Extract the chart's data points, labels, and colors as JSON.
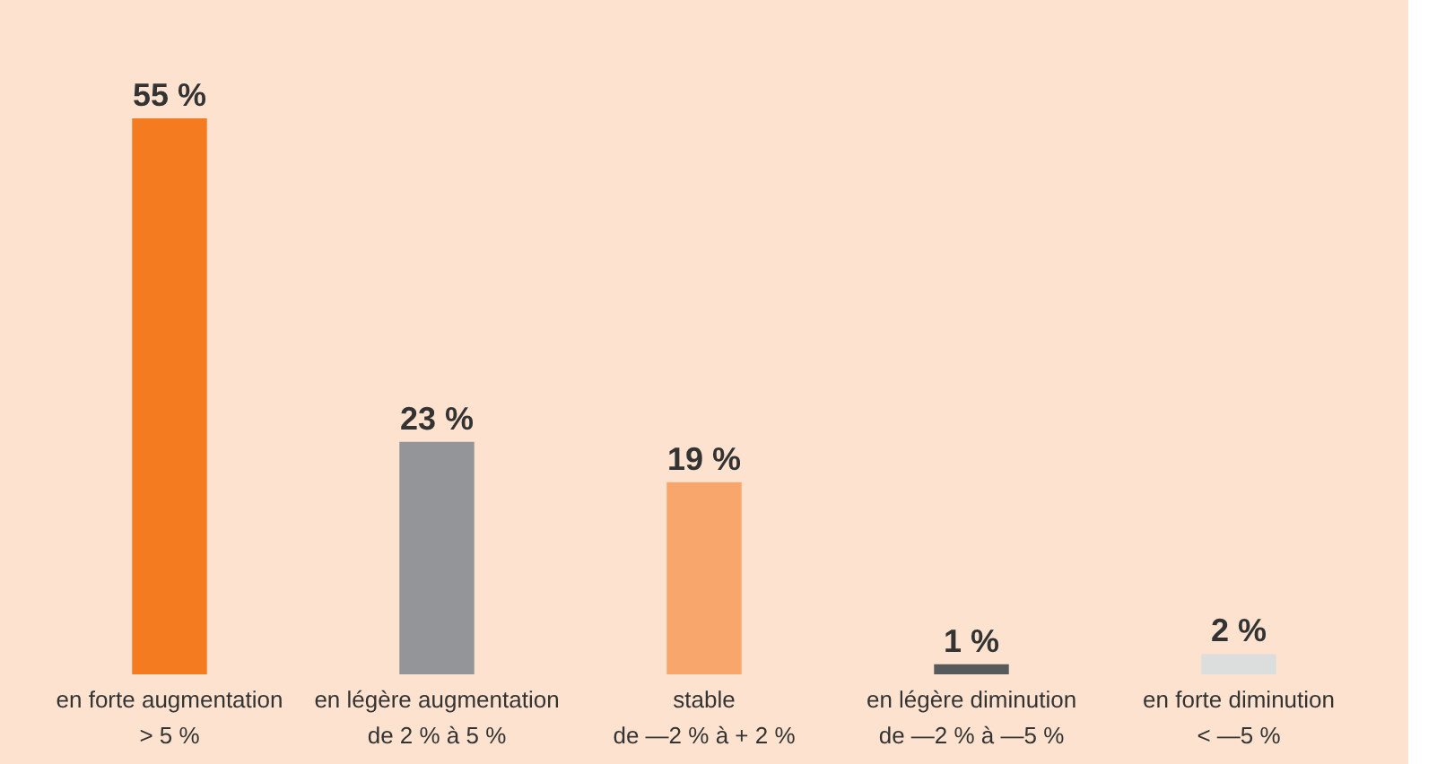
{
  "chart_data": {
    "type": "bar",
    "categories": [
      "en forte augmentation\n> 5 %",
      "en légère augmentation\nde 2 % à 5 %",
      "stable\nde —2 % à + 2 %",
      "en légère diminution\nde —2 % à —5 %",
      "en forte diminution\n< —5 %"
    ],
    "values": [
      55,
      23,
      19,
      1,
      2
    ],
    "colors": [
      "#f47b20",
      "#939598",
      "#f9a66c",
      "#58595b",
      "#dcdddd"
    ],
    "value_labels": [
      "55 %",
      "23 %",
      "19 %",
      "1 %",
      "2 %"
    ],
    "grid": false
  }
}
